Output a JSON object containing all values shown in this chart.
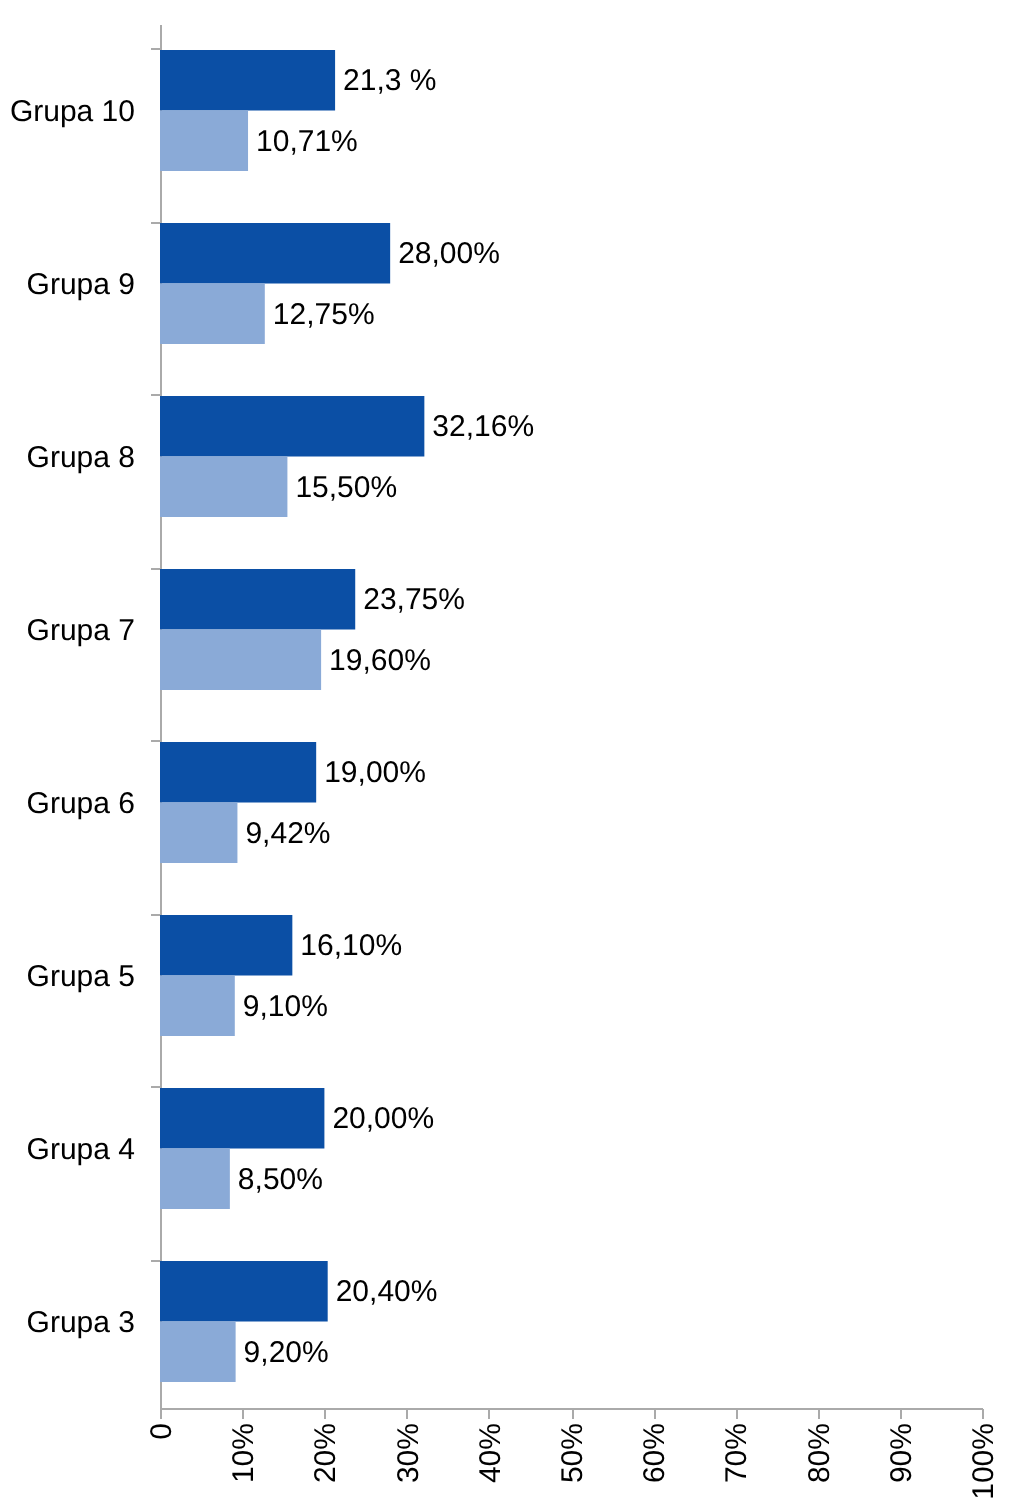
{
  "chart_data": {
    "type": "bar",
    "orientation": "horizontal",
    "categories": [
      "Grupa 10",
      "Grupa 9",
      "Grupa 8",
      "Grupa 7",
      "Grupa 6",
      "Grupa 5",
      "Grupa 4",
      "Grupa 3"
    ],
    "series": [
      {
        "color": "#0b4fa5",
        "values": [
          21.3,
          28.0,
          32.16,
          23.75,
          19.0,
          16.1,
          20.0,
          20.4
        ],
        "value_labels": [
          "21,3 %",
          "28,00%",
          "32,16%",
          "23,75%",
          "19,00%",
          "16,10%",
          "20,00%",
          "20,40%"
        ]
      },
      {
        "color": "#8aaad7",
        "values": [
          10.71,
          12.75,
          15.5,
          19.6,
          9.42,
          9.1,
          8.5,
          9.2
        ],
        "value_labels": [
          "10,71%",
          "12,75%",
          "15,50%",
          "19,60%",
          "9,42%",
          "9,10%",
          "8,50%",
          "9,20%"
        ]
      }
    ],
    "xlim": [
      0,
      100
    ],
    "xticks": [
      0,
      {
        "value": 10,
        "label": "10%"
      },
      {
        "value": 20,
        "label": "20%"
      },
      {
        "value": 30,
        "label": "30%"
      },
      {
        "value": 40,
        "label": "40%"
      },
      {
        "value": 50,
        "label": "50%"
      },
      {
        "value": 60,
        "label": "60%"
      },
      {
        "value": 70,
        "label": "70%"
      },
      {
        "value": 80,
        "label": "80%"
      },
      {
        "value": 90,
        "label": "90%"
      },
      {
        "value": 100,
        "label": "100%"
      }
    ],
    "grid": false
  }
}
